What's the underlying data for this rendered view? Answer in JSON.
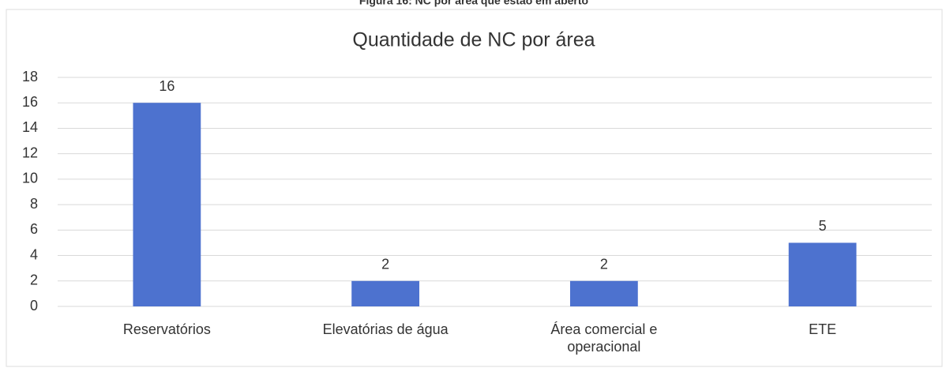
{
  "caption": "Figura 16: NC por área que estão em aberto",
  "chart_data": {
    "type": "bar",
    "title": "Quantidade de NC por área",
    "categories": [
      "Reservatórios",
      "Elevatórias de água",
      "Área comercial e operacional",
      "ETE"
    ],
    "values": [
      16,
      2,
      2,
      5
    ],
    "color": "#4d72cf",
    "ylim": [
      0,
      18
    ],
    "yticks": [
      0,
      2,
      4,
      6,
      8,
      10,
      12,
      14,
      16,
      18
    ],
    "grid": true,
    "data_labels": true
  }
}
